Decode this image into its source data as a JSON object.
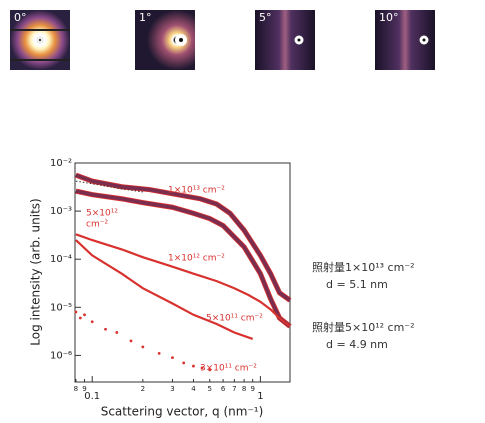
{
  "images": [
    "0°",
    "1°",
    "5°",
    "10°"
  ],
  "notes": [
    [
      "照射量1×10¹³ cm⁻²",
      "d = 5.1 nm"
    ],
    [
      "照射量5×10¹² cm⁻²",
      "d = 4.9 nm"
    ]
  ],
  "chart_data": {
    "type": "line",
    "ylabel": "Log intensity (arb. units)",
    "xlabel": "Scattering vector, q (nm⁻¹)",
    "xscale": "log",
    "yscale": "log",
    "xlim": [
      0.079,
      1.5
    ],
    "ylim": [
      2.8e-07,
      0.01
    ],
    "xticks": [
      {
        "value": 0.08,
        "label": "8"
      },
      {
        "value": 0.09,
        "label": "9"
      },
      0.1,
      {
        "value": 0.2,
        "label": "2"
      },
      {
        "value": 0.3,
        "label": "3"
      },
      {
        "value": 0.4,
        "label": "4"
      },
      {
        "value": 0.5,
        "label": "5"
      },
      {
        "value": 0.6,
        "label": "6"
      },
      {
        "value": 0.7,
        "label": "7"
      },
      {
        "value": 0.8,
        "label": "8"
      },
      {
        "value": 0.9,
        "label": "9"
      },
      1
    ],
    "yticks": [
      {
        "value": 1e-06,
        "label": "10⁻⁶"
      },
      {
        "value": 1e-05,
        "label": "10⁻⁵"
      },
      {
        "value": 0.0001,
        "label": "10⁻⁴"
      },
      {
        "value": 0.001,
        "label": "10⁻³"
      },
      {
        "value": 0.01,
        "label": "10⁻²"
      }
    ],
    "series": [
      {
        "style": "line",
        "color": "#7a2d4e",
        "x": [
          0.08,
          0.1,
          0.15,
          0.22,
          0.3,
          0.44,
          0.55,
          0.66,
          0.8,
          1,
          1.15,
          1.3,
          1.5
        ],
        "values": [
          0.0056,
          0.0042,
          0.0032,
          0.0028,
          0.0023,
          0.0018,
          0.0014,
          0.0009,
          0.0004,
          0.00012,
          5e-05,
          2e-05,
          1.4e-05
        ]
      },
      {
        "style": "line",
        "color": "#7a2d4e",
        "x": [
          0.08,
          0.1,
          0.15,
          0.2,
          0.3,
          0.4,
          0.5,
          0.6,
          0.8,
          1,
          1.15,
          1.3,
          1.5
        ],
        "values": [
          0.0026,
          0.0022,
          0.0018,
          0.0015,
          0.0012,
          0.0009,
          0.0007,
          0.0005,
          0.00018,
          5e-05,
          1.5e-05,
          6e-06,
          4e-06
        ]
      },
      {
        "style": "line",
        "color": "#d8322f",
        "x": [
          0.08,
          0.1,
          0.15,
          0.2,
          0.3,
          0.4,
          0.55,
          0.7,
          0.85,
          1,
          1.15,
          1.3,
          1.5
        ],
        "values": [
          0.00033,
          0.00025,
          0.00016,
          0.00011,
          7e-05,
          5e-05,
          3.5e-05,
          2.5e-05,
          1.8e-05,
          1.3e-05,
          9e-06,
          6e-06,
          4e-06
        ]
      },
      {
        "style": "line",
        "color": "#d8322f",
        "x": [
          0.08,
          0.1,
          0.15,
          0.2,
          0.3,
          0.4,
          0.55,
          0.7,
          0.9
        ],
        "values": [
          0.00025,
          0.00012,
          5e-05,
          2.5e-05,
          1.2e-05,
          7e-06,
          4.5e-06,
          3e-06,
          2.2e-06
        ]
      },
      {
        "style": "markers",
        "color": "#d8322f",
        "x": [
          0.08,
          0.085,
          0.09,
          0.1,
          0.12,
          0.14,
          0.17,
          0.2,
          0.25,
          0.3,
          0.35,
          0.4,
          0.45,
          0.5
        ],
        "values": [
          8e-06,
          6e-06,
          7e-06,
          5e-06,
          3.5e-06,
          3e-06,
          2e-06,
          1.5e-06,
          1.1e-06,
          9e-07,
          7e-07,
          6e-07,
          5.5e-07,
          5e-07
        ]
      },
      {
        "style": "dotted",
        "color": "#333333",
        "x": [
          0.08,
          0.1,
          0.15,
          0.2
        ],
        "values": [
          0.0042,
          0.0037,
          0.0029,
          0.0025
        ]
      }
    ],
    "annotations": [
      "1×10¹³ cm⁻²",
      "5×10¹²",
      "cm⁻²",
      "1×10¹² cm⁻²",
      "5×10¹¹ cm⁻²",
      "3×10¹¹ cm⁻²"
    ]
  }
}
